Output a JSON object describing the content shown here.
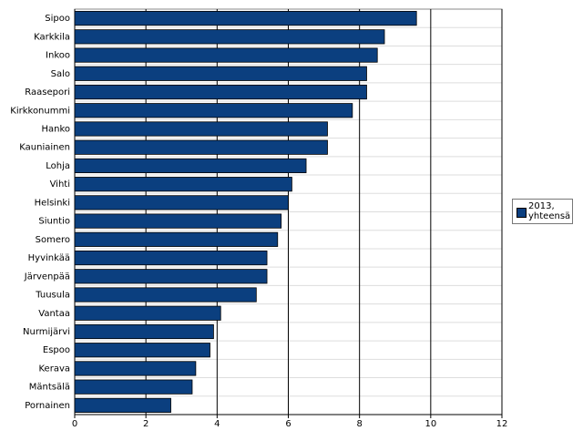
{
  "chart_data": {
    "type": "bar",
    "orientation": "horizontal",
    "categories": [
      "Sipoo",
      "Karkkila",
      "Inkoo",
      "Salo",
      "Raasepori",
      "Kirkkonummi",
      "Hanko",
      "Kauniainen",
      "Lohja",
      "Vihti",
      "Helsinki",
      "Siuntio",
      "Somero",
      "Hyvinkää",
      "Järvenpää",
      "Tuusula",
      "Vantaa",
      "Nurmijärvi",
      "Espoo",
      "Kerava",
      "Mäntsälä",
      "Pornainen"
    ],
    "series": [
      {
        "name": "2013, yhteensä",
        "color": "#0b3f7f",
        "values": [
          9.6,
          8.7,
          8.5,
          8.2,
          8.2,
          7.8,
          7.1,
          7.1,
          6.5,
          6.1,
          6.0,
          5.8,
          5.7,
          5.4,
          5.4,
          5.1,
          4.1,
          3.9,
          3.8,
          3.4,
          3.3,
          2.7
        ]
      }
    ],
    "xlim": [
      0,
      12
    ],
    "xticks": [
      0,
      2,
      4,
      6,
      8,
      10,
      12
    ],
    "grid": true,
    "legend": "right"
  }
}
